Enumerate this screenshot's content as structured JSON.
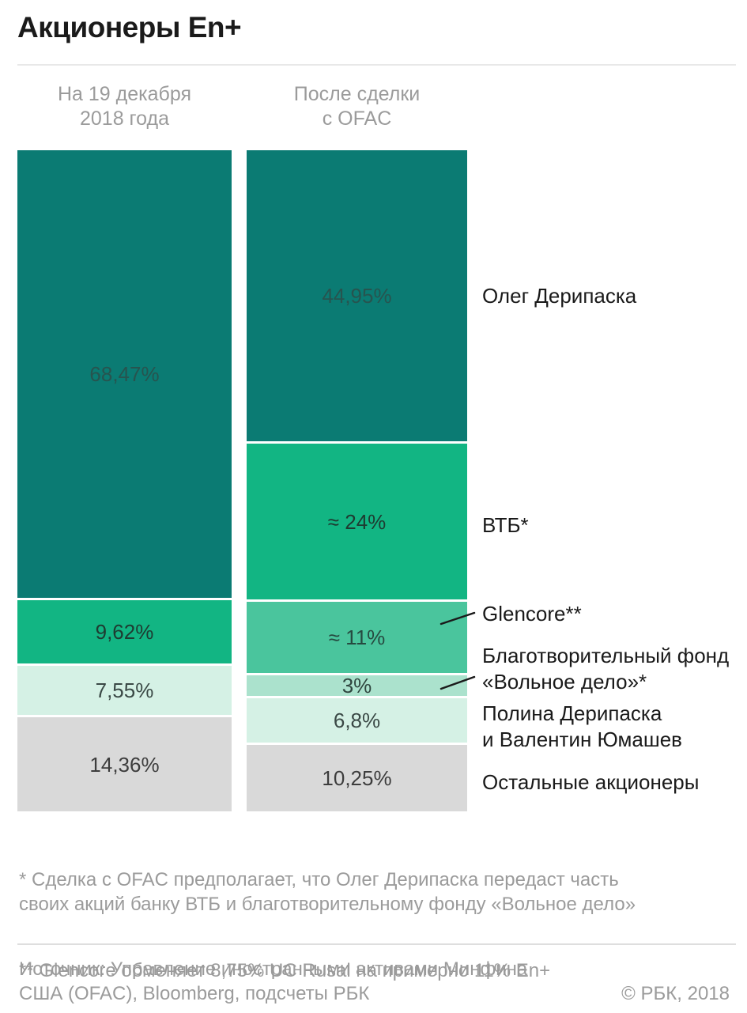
{
  "page": {
    "title": "Акционеры En+",
    "footnote_1": "* Сделка с OFAC предполагает, что Олег Дерипаска передаст часть\nсвоих акций банку ВТБ и благотворительному фонду «Вольное дело»",
    "footnote_2": "** Glencore обменяет 8,75% UC Rusal на примерно 11% En+",
    "source": "Источник: Управление иностранными активами Минфина\nСША (OFAC), Bloomberg, подсчеты РБК",
    "copyright": "© РБК, 2018"
  },
  "colors": {
    "teal_dark": "#0B7B73",
    "green": "#12B583",
    "seafoam": "#4AC59D",
    "seafoam_light": "#ABE2CD",
    "mint": "#D5F1E5",
    "gray": "#D9D9D9",
    "text_primary": "#1A1A1A",
    "text_muted": "#9B9B9B"
  },
  "chart_data": {
    "type": "bar",
    "subtype": "stacked_percentage_columns",
    "title": "Акционеры En+",
    "unit": "%",
    "grid": false,
    "legend_position": "right",
    "columns": [
      {
        "header": "На 19 декабря\n2018 года",
        "total": 100,
        "segments": [
          {
            "label": "68,47%",
            "value": 68.47,
            "color": "#0B7B73",
            "text_color": "#27544F"
          },
          {
            "label": "9,62%",
            "value": 9.62,
            "color": "#12B583",
            "text_color": "#1E3B31"
          },
          {
            "label": "7,55%",
            "value": 7.55,
            "color": "#D5F1E5",
            "text_color": "#3A4845"
          },
          {
            "label": "14,36%",
            "value": 14.36,
            "color": "#D9D9D9",
            "text_color": "#3D3D3D"
          }
        ]
      },
      {
        "header": "После сделки\nс OFAC",
        "total": 100,
        "segments": [
          {
            "label": "44,95%",
            "value": 44.95,
            "color": "#0B7B73",
            "text_color": "#27544F"
          },
          {
            "label": "≈ 24%",
            "value": 24,
            "color": "#12B583",
            "text_color": "#1E3B31"
          },
          {
            "label": "≈ 11%",
            "value": 11,
            "color": "#4AC59D",
            "text_color": "#264A40"
          },
          {
            "label": "3%",
            "value": 3,
            "color": "#ABE2CD",
            "text_color": "#2F463F"
          },
          {
            "label": "6,8%",
            "value": 6.8,
            "color": "#D5F1E5",
            "text_color": "#3A4845"
          },
          {
            "label": "10,25%",
            "value": 10.25,
            "color": "#D9D9D9",
            "text_color": "#3D3D3D"
          }
        ]
      }
    ],
    "row_labels": [
      {
        "text": "Олег Дерипаска"
      },
      {
        "text": "ВТБ*"
      },
      {
        "text": "Glencore**"
      },
      {
        "text": "Благотворительный фонд\n«Вольное дело»*"
      },
      {
        "text": "Полина Дерипаска\nи Валентин Юмашев"
      },
      {
        "text": "Остальные акционеры"
      }
    ]
  }
}
